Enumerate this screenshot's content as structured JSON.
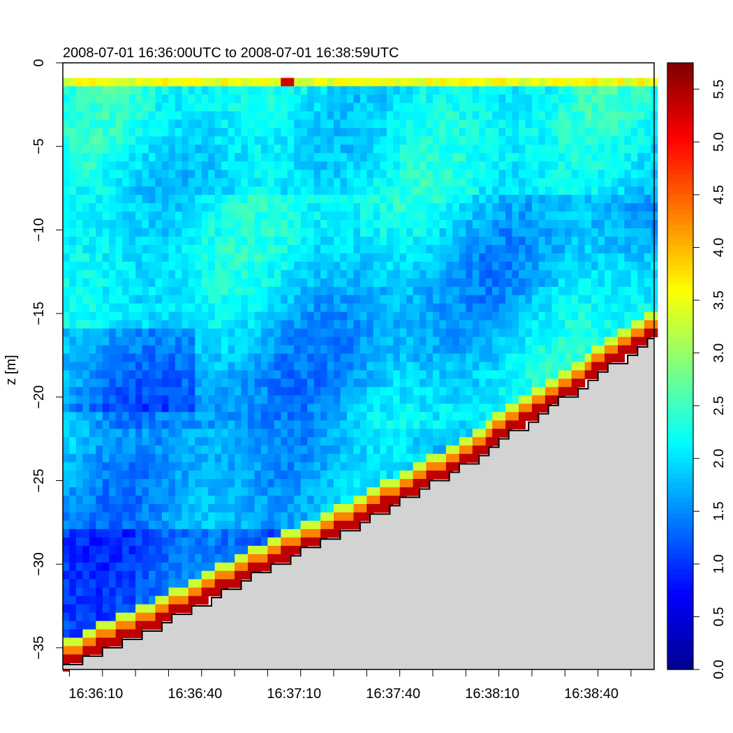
{
  "chart_data": {
    "type": "heatmap",
    "title": "2008-07-01 16:36:00UTC to 2008-07-01 16:38:59UTC",
    "xlabel": "",
    "ylabel": "z [m]",
    "x_start": "16:36:00",
    "x_end": "16:38:59",
    "x_ticks": [
      "16:36:10",
      "16:36:40",
      "16:37:10",
      "16:37:40",
      "16:38:10",
      "16:38:40"
    ],
    "x_tick_seconds": [
      10,
      40,
      70,
      100,
      130,
      160
    ],
    "xlim_seconds": [
      0,
      179
    ],
    "y_ticks": [
      "0",
      "−5",
      "−10",
      "−15",
      "−20",
      "−25",
      "−30",
      "−35"
    ],
    "y_tick_values": [
      0,
      -5,
      -10,
      -15,
      -20,
      -25,
      -30,
      -35
    ],
    "ylim": [
      -36.3,
      0
    ],
    "colorbar": {
      "ticks": [
        "0.0",
        "0.5",
        "1.0",
        "1.5",
        "2.0",
        "2.5",
        "3.0",
        "3.5",
        "4.0",
        "4.5",
        "5.0",
        "5.5"
      ],
      "tick_values": [
        0,
        0.5,
        1,
        1.5,
        2,
        2.5,
        3,
        3.5,
        4,
        4.5,
        5,
        5.5
      ],
      "range": [
        0,
        5.75
      ],
      "palette": "jet",
      "colors": [
        "#00008F",
        "#0000FF",
        "#00FFFF",
        "#FFFF00",
        "#FF0000",
        "#800000"
      ]
    },
    "bottom_depth": {
      "time_seconds": [
        0,
        30,
        60,
        90,
        120,
        150,
        179
      ],
      "depth_m": [
        -36.2,
        -33.5,
        -30.4,
        -27.5,
        -24.2,
        -20.2,
        -16.3
      ]
    },
    "surface_band": {
      "z_top": -0.9,
      "z_bottom": -1.3,
      "value": 3.5
    },
    "surface_hotspot": {
      "time_seconds": 67,
      "value": 5.3
    },
    "bottom_fill_color": "#D3D3D3",
    "grid": false,
    "legend": "colorbar-right"
  }
}
